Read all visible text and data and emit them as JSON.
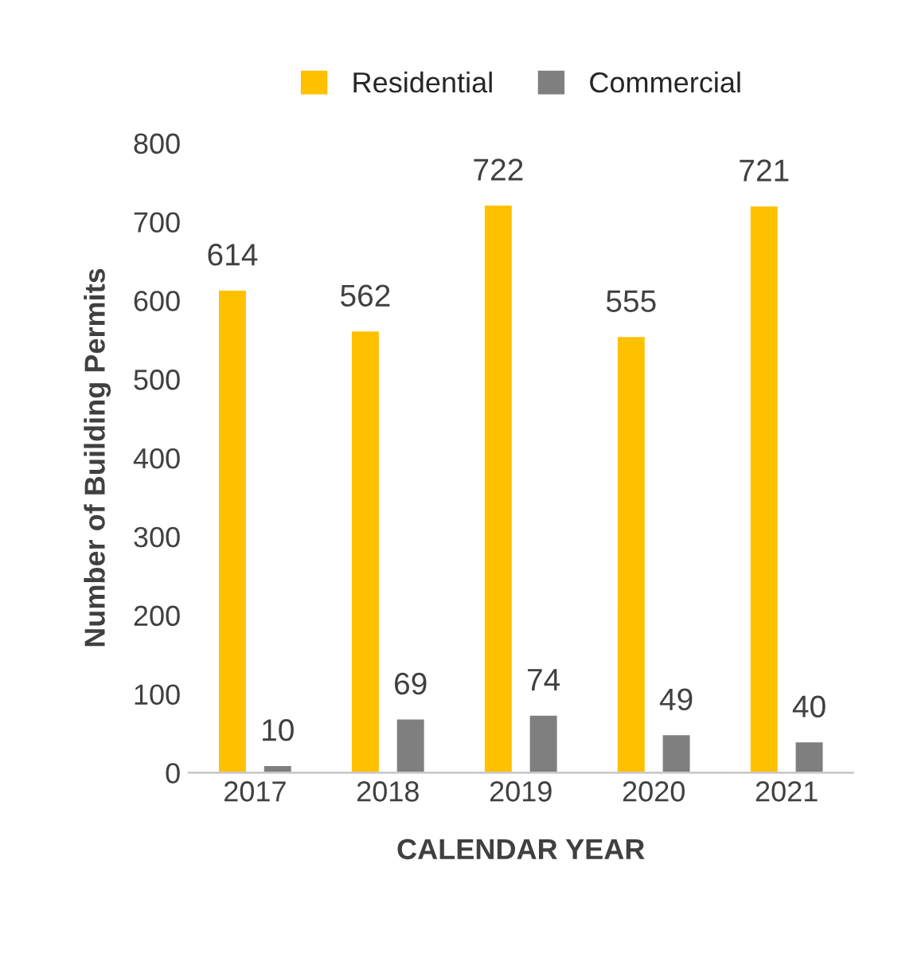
{
  "chart_data": {
    "type": "bar",
    "xlabel": "CALENDAR YEAR",
    "ylabel": "Number of Building Permits",
    "categories": [
      "2017",
      "2018",
      "2019",
      "2020",
      "2021"
    ],
    "series": [
      {
        "name": "Residential",
        "color": "#ffc000",
        "values": [
          614,
          562,
          722,
          555,
          721
        ]
      },
      {
        "name": "Commercial",
        "color": "#7f7f7f",
        "values": [
          10,
          69,
          74,
          49,
          40
        ]
      }
    ],
    "ylim": [
      0,
      800
    ],
    "yticks": [
      0,
      100,
      200,
      300,
      400,
      500,
      600,
      700,
      800
    ],
    "data_labels": true,
    "legend": "top",
    "grid": false
  }
}
